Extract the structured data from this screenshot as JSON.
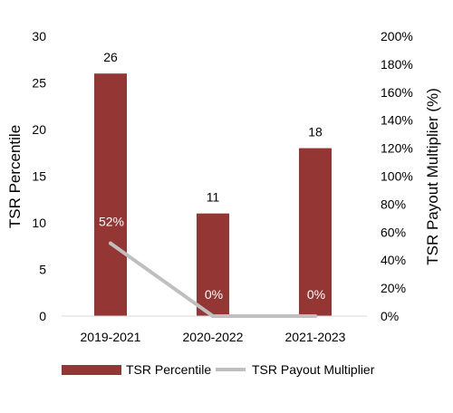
{
  "chart_data": {
    "type": "bar",
    "categories": [
      "2019-2021",
      "2020-2022",
      "2021-2023"
    ],
    "series": [
      {
        "name": "TSR Percentile",
        "type": "bar",
        "axis": "left",
        "values": [
          26,
          11,
          18
        ],
        "labels": [
          "26",
          "11",
          "18"
        ],
        "color": "#943634"
      },
      {
        "name": "TSR Payout Multiplier",
        "type": "line",
        "axis": "right",
        "values": [
          52,
          0,
          0
        ],
        "labels": [
          "52%",
          "0%",
          "0%"
        ],
        "color": "#bfbfbf"
      }
    ],
    "ylabel": "TSR Percentile",
    "y2label": "TSR Payout Multiplier (%)",
    "ylim": [
      0,
      30
    ],
    "y2lim": [
      0,
      200
    ],
    "yticks": [
      "0",
      "5",
      "10",
      "15",
      "20",
      "25",
      "30"
    ],
    "y2ticks": [
      "0%",
      "20%",
      "40%",
      "60%",
      "80%",
      "100%",
      "120%",
      "140%",
      "160%",
      "180%",
      "200%"
    ],
    "grid": false,
    "legend": "bottom"
  }
}
